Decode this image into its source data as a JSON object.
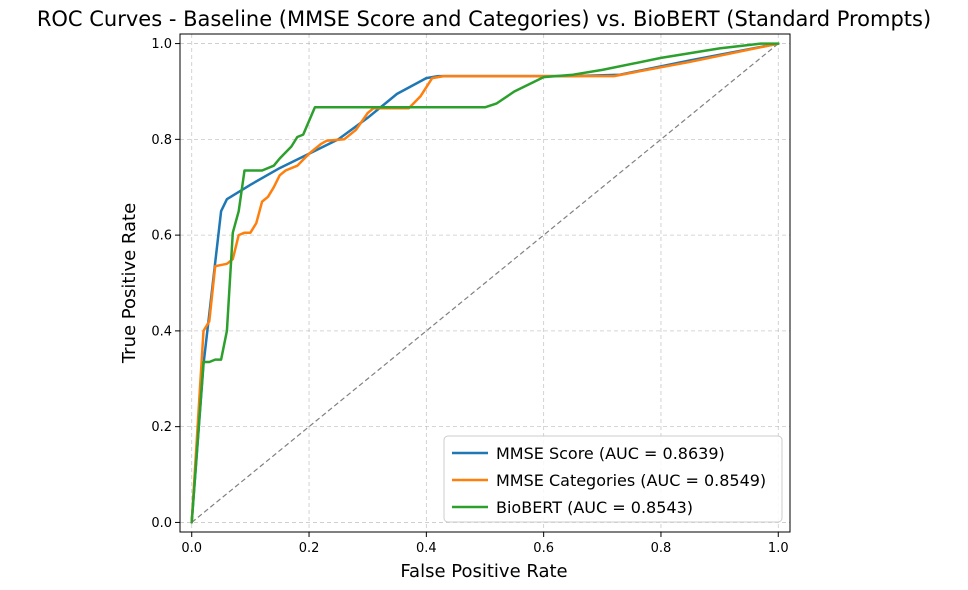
{
  "chart_data": {
    "type": "line",
    "title": "ROC Curves - Baseline (MMSE Score and Categories) vs. BioBERT (Standard Prompts)",
    "xlabel": "False Positive Rate",
    "ylabel": "True Positive Rate",
    "xlim": [
      -0.02,
      1.02
    ],
    "ylim": [
      -0.02,
      1.02
    ],
    "xticks": [
      0.0,
      0.2,
      0.4,
      0.6,
      0.8,
      1.0
    ],
    "yticks": [
      0.0,
      0.2,
      0.4,
      0.6,
      0.8,
      1.0
    ],
    "xtick_labels": [
      "0.0",
      "0.2",
      "0.4",
      "0.6",
      "0.8",
      "1.0"
    ],
    "ytick_labels": [
      "0.0",
      "0.2",
      "0.4",
      "0.6",
      "0.8",
      "1.0"
    ],
    "grid": true,
    "legend_position": "bottom-right",
    "diagonal": {
      "x": [
        0,
        1
      ],
      "y": [
        0,
        1
      ],
      "color": "#808080",
      "style": "dashed"
    },
    "series": [
      {
        "name": "MMSE Score (AUC = 0.8639)",
        "color": "#1f77b4",
        "x": [
          0.0,
          0.02,
          0.05,
          0.06,
          0.1,
          0.15,
          0.2,
          0.25,
          0.3,
          0.35,
          0.4,
          0.42,
          0.45,
          0.55,
          0.65,
          0.73,
          0.85,
          1.0
        ],
        "y": [
          0.0,
          0.33,
          0.65,
          0.675,
          0.705,
          0.74,
          0.77,
          0.8,
          0.845,
          0.895,
          0.928,
          0.932,
          0.932,
          0.932,
          0.932,
          0.935,
          0.965,
          1.0
        ]
      },
      {
        "name": "MMSE Categories (AUC = 0.8549)",
        "color": "#ff7f0e",
        "x": [
          0.0,
          0.02,
          0.03,
          0.04,
          0.06,
          0.07,
          0.08,
          0.09,
          0.1,
          0.11,
          0.12,
          0.13,
          0.14,
          0.15,
          0.16,
          0.18,
          0.2,
          0.22,
          0.23,
          0.26,
          0.28,
          0.3,
          0.31,
          0.37,
          0.39,
          0.41,
          0.43,
          0.5,
          0.6,
          0.72,
          0.85,
          1.0
        ],
        "y": [
          0.0,
          0.4,
          0.42,
          0.535,
          0.54,
          0.55,
          0.6,
          0.605,
          0.605,
          0.625,
          0.67,
          0.68,
          0.7,
          0.725,
          0.735,
          0.745,
          0.77,
          0.79,
          0.797,
          0.8,
          0.82,
          0.855,
          0.865,
          0.865,
          0.89,
          0.928,
          0.932,
          0.932,
          0.932,
          0.932,
          0.962,
          1.0
        ]
      },
      {
        "name": "BioBERT (AUC = 0.8543)",
        "color": "#2ca02c",
        "x": [
          0.0,
          0.02,
          0.03,
          0.04,
          0.05,
          0.06,
          0.07,
          0.08,
          0.09,
          0.12,
          0.14,
          0.15,
          0.17,
          0.18,
          0.19,
          0.21,
          0.3,
          0.4,
          0.5,
          0.52,
          0.55,
          0.6,
          0.65,
          0.7,
          0.8,
          0.9,
          0.97,
          1.0
        ],
        "y": [
          0.0,
          0.335,
          0.335,
          0.34,
          0.34,
          0.4,
          0.605,
          0.65,
          0.735,
          0.735,
          0.745,
          0.76,
          0.785,
          0.805,
          0.81,
          0.867,
          0.867,
          0.867,
          0.867,
          0.875,
          0.9,
          0.93,
          0.935,
          0.945,
          0.97,
          0.99,
          1.0,
          1.0
        ]
      }
    ]
  }
}
